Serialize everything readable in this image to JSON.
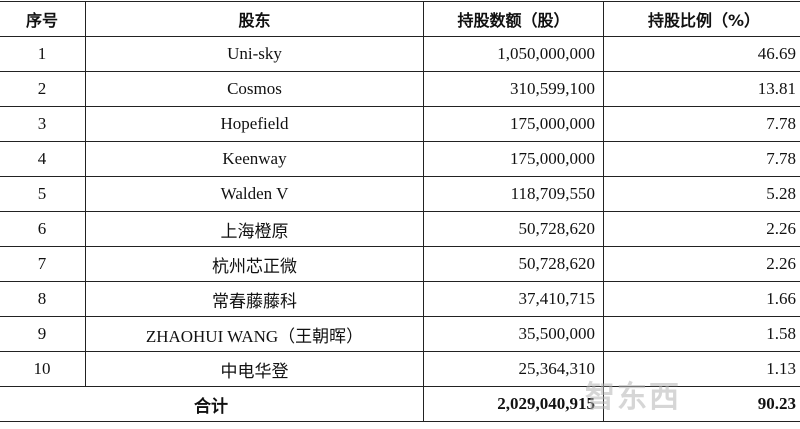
{
  "headers": [
    "序号",
    "股东",
    "持股数额（股）",
    "持股比例（%）"
  ],
  "rows": [
    {
      "no": "1",
      "holder": "Uni-sky",
      "shares": "1,050,000,000",
      "pct": "46.69"
    },
    {
      "no": "2",
      "holder": "Cosmos",
      "shares": "310,599,100",
      "pct": "13.81"
    },
    {
      "no": "3",
      "holder": "Hopefield",
      "shares": "175,000,000",
      "pct": "7.78"
    },
    {
      "no": "4",
      "holder": "Keenway",
      "shares": "175,000,000",
      "pct": "7.78"
    },
    {
      "no": "5",
      "holder": "Walden V",
      "shares": "118,709,550",
      "pct": "5.28"
    },
    {
      "no": "6",
      "holder": "上海橙原",
      "shares": "50,728,620",
      "pct": "2.26"
    },
    {
      "no": "7",
      "holder": "杭州芯正微",
      "shares": "50,728,620",
      "pct": "2.26"
    },
    {
      "no": "8",
      "holder": "常春藤藤科",
      "shares": "37,410,715",
      "pct": "1.66"
    },
    {
      "no": "9",
      "holder": "ZHAOHUI WANG（王朝晖）",
      "shares": "35,500,000",
      "pct": "1.58"
    },
    {
      "no": "10",
      "holder": "中电华登",
      "shares": "25,364,310",
      "pct": "1.13"
    }
  ],
  "total": {
    "label": "合计",
    "shares": "2,029,040,915",
    "pct": "90.23"
  },
  "watermark": "智东西"
}
